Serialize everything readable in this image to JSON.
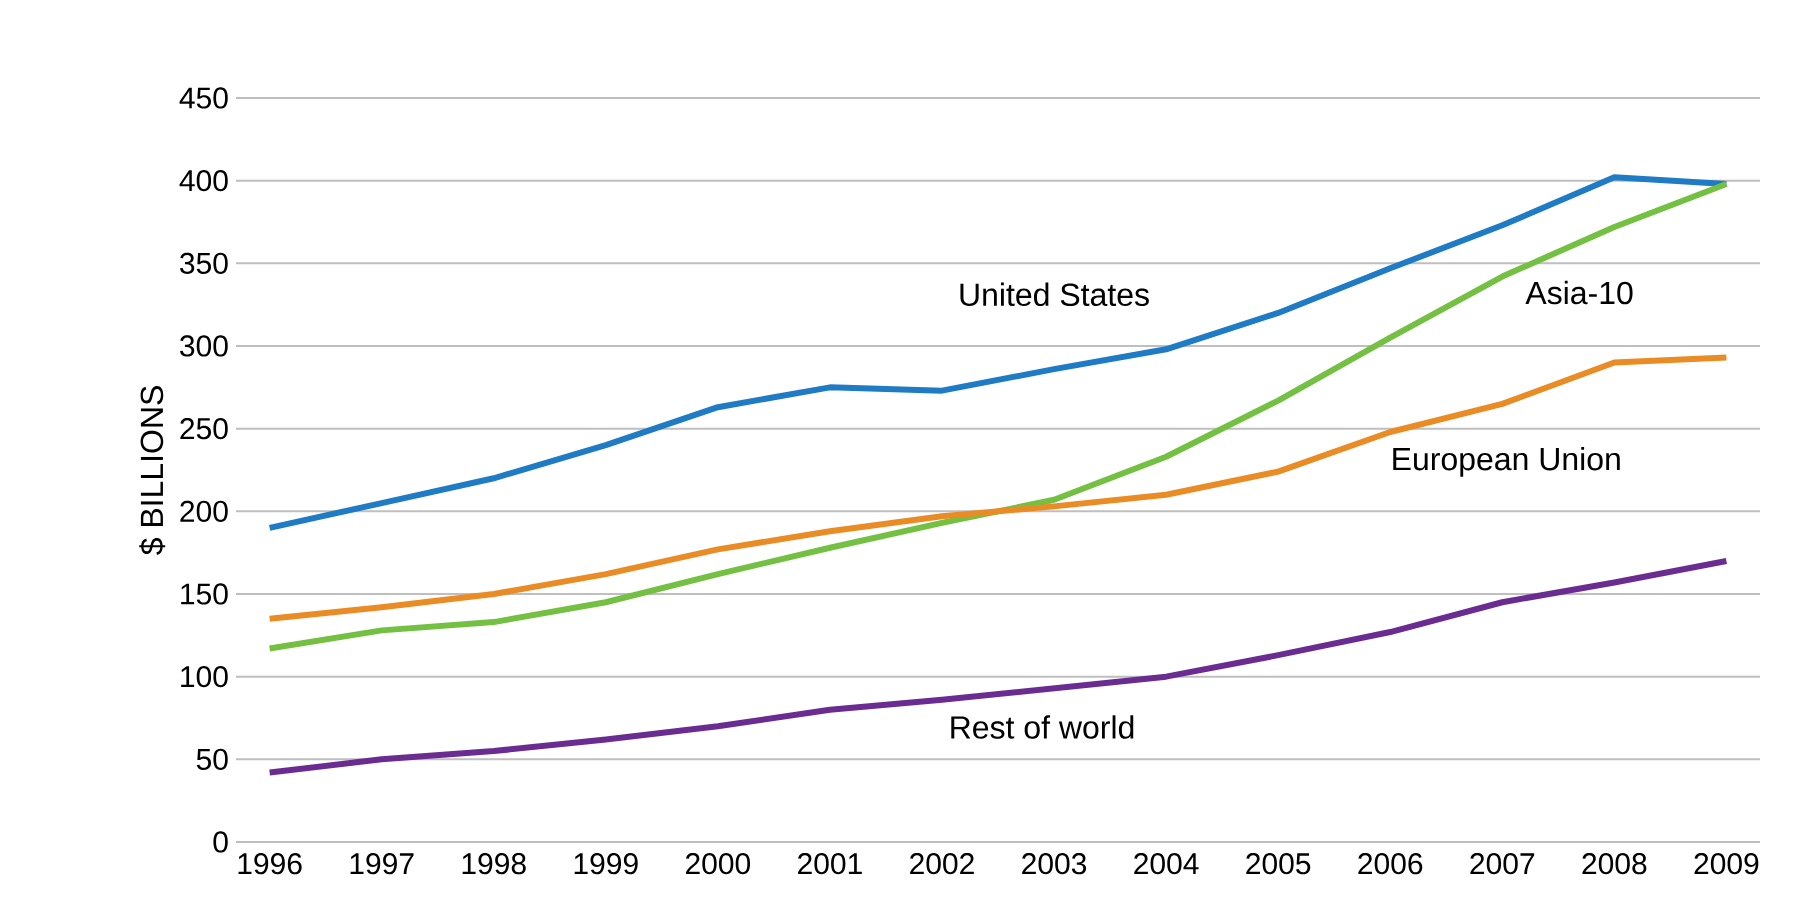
{
  "chart_data": {
    "type": "line",
    "ylabel": "$ BILLIONS",
    "categories": [
      "1996",
      "1997",
      "1998",
      "1999",
      "2000",
      "2001",
      "2002",
      "2003",
      "2004",
      "2005",
      "2006",
      "2007",
      "2008",
      "2009"
    ],
    "series": [
      {
        "name": "United States",
        "color": "#1f7bc4",
        "values": [
          190,
          205,
          220,
          240,
          263,
          275,
          273,
          286,
          298,
          320,
          347,
          373,
          402,
          398
        ]
      },
      {
        "name": "Asia-10",
        "color": "#74c043",
        "values": [
          117,
          128,
          133,
          145,
          162,
          178,
          193,
          207,
          233,
          267,
          305,
          342,
          372,
          398
        ]
      },
      {
        "name": "European Union",
        "color": "#e98c25",
        "values": [
          135,
          142,
          150,
          162,
          177,
          188,
          197,
          203,
          210,
          224,
          248,
          265,
          290,
          293
        ]
      },
      {
        "name": "Rest of world",
        "color": "#6a2c91",
        "values": [
          42,
          50,
          55,
          62,
          70,
          80,
          86,
          93,
          100,
          113,
          127,
          145,
          157,
          170
        ]
      }
    ],
    "ylim": [
      0,
      450
    ],
    "yticks": [
      0,
      50,
      100,
      150,
      200,
      250,
      300,
      350,
      400,
      450
    ],
    "grid": "y",
    "legend": false,
    "marker": "none",
    "line_style": "solid"
  }
}
